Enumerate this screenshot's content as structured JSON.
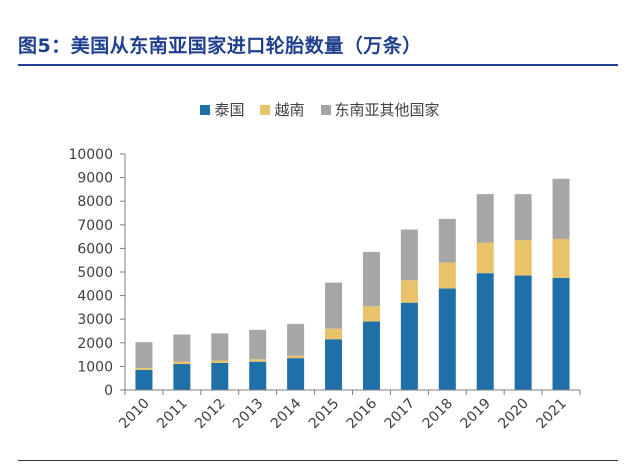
{
  "header": {
    "title": "图5：美国从东南亚国家进口轮胎数量（万条）"
  },
  "chart_data": {
    "type": "bar",
    "stacked": true,
    "title": "美国从东南亚国家进口轮胎数量（万条）",
    "categories": [
      "2010",
      "2011",
      "2012",
      "2013",
      "2014",
      "2015",
      "2016",
      "2017",
      "2018",
      "2019",
      "2020",
      "2021"
    ],
    "series": [
      {
        "name": "泰国",
        "color": "#1f6fa8",
        "values": [
          850,
          1100,
          1150,
          1200,
          1350,
          2150,
          2900,
          3700,
          4300,
          4950,
          4850,
          4750
        ]
      },
      {
        "name": "越南",
        "color": "#e9c36a",
        "values": [
          80,
          100,
          100,
          100,
          100,
          450,
          650,
          950,
          1100,
          1300,
          1500,
          1650
        ]
      },
      {
        "name": "东南亚其他国家",
        "color": "#a6a6a6",
        "values": [
          1100,
          1150,
          1150,
          1250,
          1350,
          1950,
          2300,
          2150,
          1850,
          2050,
          1950,
          2550
        ]
      }
    ],
    "ylim": [
      0,
      10000
    ],
    "yticks": [
      0,
      1000,
      2000,
      3000,
      4000,
      5000,
      6000,
      7000,
      8000,
      9000,
      10000
    ],
    "xlabel": "",
    "ylabel": "",
    "legend_position": "top-center",
    "grid": false
  }
}
